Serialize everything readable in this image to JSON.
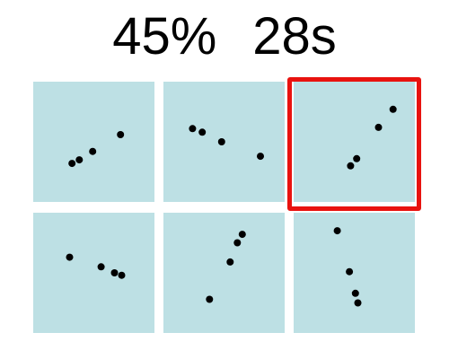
{
  "status": {
    "accuracy": "45%",
    "timer": "28s"
  },
  "selected_tile": 2,
  "colors": {
    "tile_bg": "#bde0e4",
    "dot": "#000000",
    "selection": "#e8130f"
  },
  "tiles": [
    {
      "points": [
        [
          0.32,
          0.68
        ],
        [
          0.38,
          0.65
        ],
        [
          0.49,
          0.58
        ],
        [
          0.72,
          0.44
        ]
      ]
    },
    {
      "points": [
        [
          0.24,
          0.39
        ],
        [
          0.32,
          0.42
        ],
        [
          0.48,
          0.5
        ],
        [
          0.8,
          0.62
        ]
      ]
    },
    {
      "points": [
        [
          0.47,
          0.7
        ],
        [
          0.52,
          0.64
        ],
        [
          0.7,
          0.38
        ],
        [
          0.82,
          0.23
        ]
      ]
    },
    {
      "points": [
        [
          0.3,
          0.37
        ],
        [
          0.56,
          0.45
        ],
        [
          0.67,
          0.5
        ],
        [
          0.73,
          0.52
        ]
      ]
    },
    {
      "points": [
        [
          0.38,
          0.72
        ],
        [
          0.55,
          0.41
        ],
        [
          0.61,
          0.25
        ],
        [
          0.65,
          0.18
        ]
      ]
    },
    {
      "points": [
        [
          0.36,
          0.15
        ],
        [
          0.46,
          0.49
        ],
        [
          0.51,
          0.67
        ],
        [
          0.53,
          0.75
        ]
      ]
    }
  ]
}
